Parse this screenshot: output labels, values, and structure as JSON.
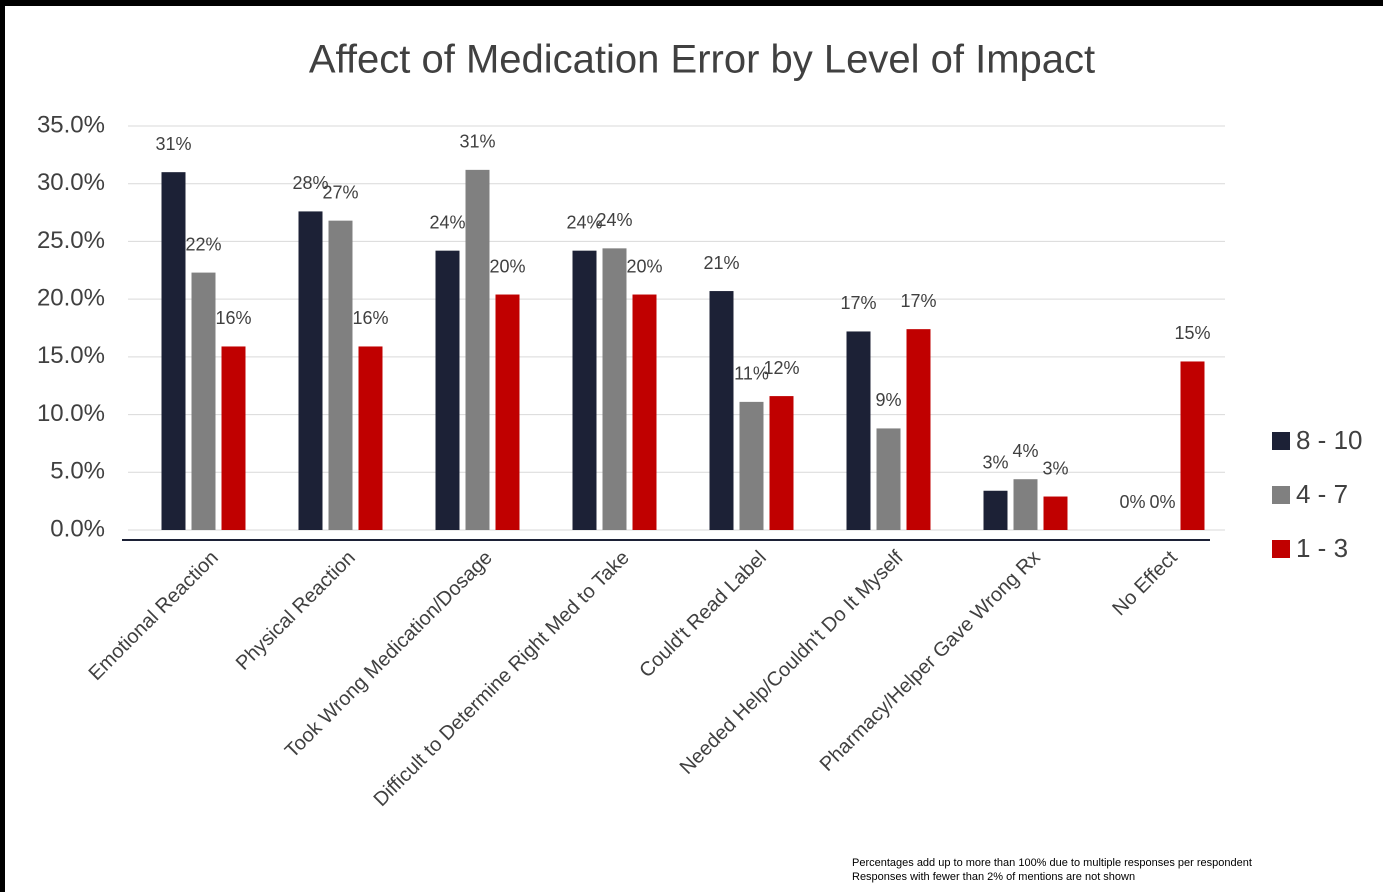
{
  "chart_data": {
    "type": "bar",
    "title": "Affect of Medication Error by Level of Impact",
    "categories": [
      "Emotional Reaction",
      "Physical Reaction",
      "Took Wrong Medication/Dosage",
      "Difficult to Determine Right Med to Take",
      "Could't Read Label",
      "Needed Help/Couldn't Do It Myself",
      "Pharmacy/Helper Gave Wrong Rx",
      "No Effect"
    ],
    "series": [
      {
        "name": "8 - 10",
        "color": "#1c2136",
        "values": [
          31.0,
          27.6,
          24.2,
          24.2,
          20.7,
          17.2,
          3.4,
          0
        ],
        "value_labels": [
          "31%",
          "28%",
          "24%",
          "24%",
          "21%",
          "17%",
          "3%",
          "0%"
        ]
      },
      {
        "name": "4 - 7",
        "color": "#808080",
        "values": [
          22.3,
          26.8,
          31.2,
          24.4,
          11.1,
          8.8,
          4.4,
          0
        ],
        "value_labels": [
          "22%",
          "27%",
          "31%",
          "24%",
          "11%",
          "9%",
          "4%",
          "0%"
        ]
      },
      {
        "name": "1 - 3",
        "color": "#c00000",
        "values": [
          15.9,
          15.9,
          20.4,
          20.4,
          11.6,
          17.4,
          2.9,
          14.6
        ],
        "value_labels": [
          "16%",
          "16%",
          "20%",
          "20%",
          "12%",
          "17%",
          "3%",
          "15%"
        ]
      }
    ],
    "ylim": [
      0,
      35
    ],
    "yticks": [
      {
        "value": 0,
        "label": "0.0%"
      },
      {
        "value": 5,
        "label": "5.0%"
      },
      {
        "value": 10,
        "label": "10.0%"
      },
      {
        "value": 15,
        "label": "15.0%"
      },
      {
        "value": 20,
        "label": "20.0%"
      },
      {
        "value": 25,
        "label": "25.0%"
      },
      {
        "value": 30,
        "label": "30.0%"
      },
      {
        "value": 35,
        "label": "35.0%"
      }
    ],
    "grid": true,
    "legend": "right",
    "notes": [
      "Percentages add up to more than 100% due to multiple responses per respondent",
      "Responses with fewer than 2% of mentions are not shown"
    ]
  }
}
